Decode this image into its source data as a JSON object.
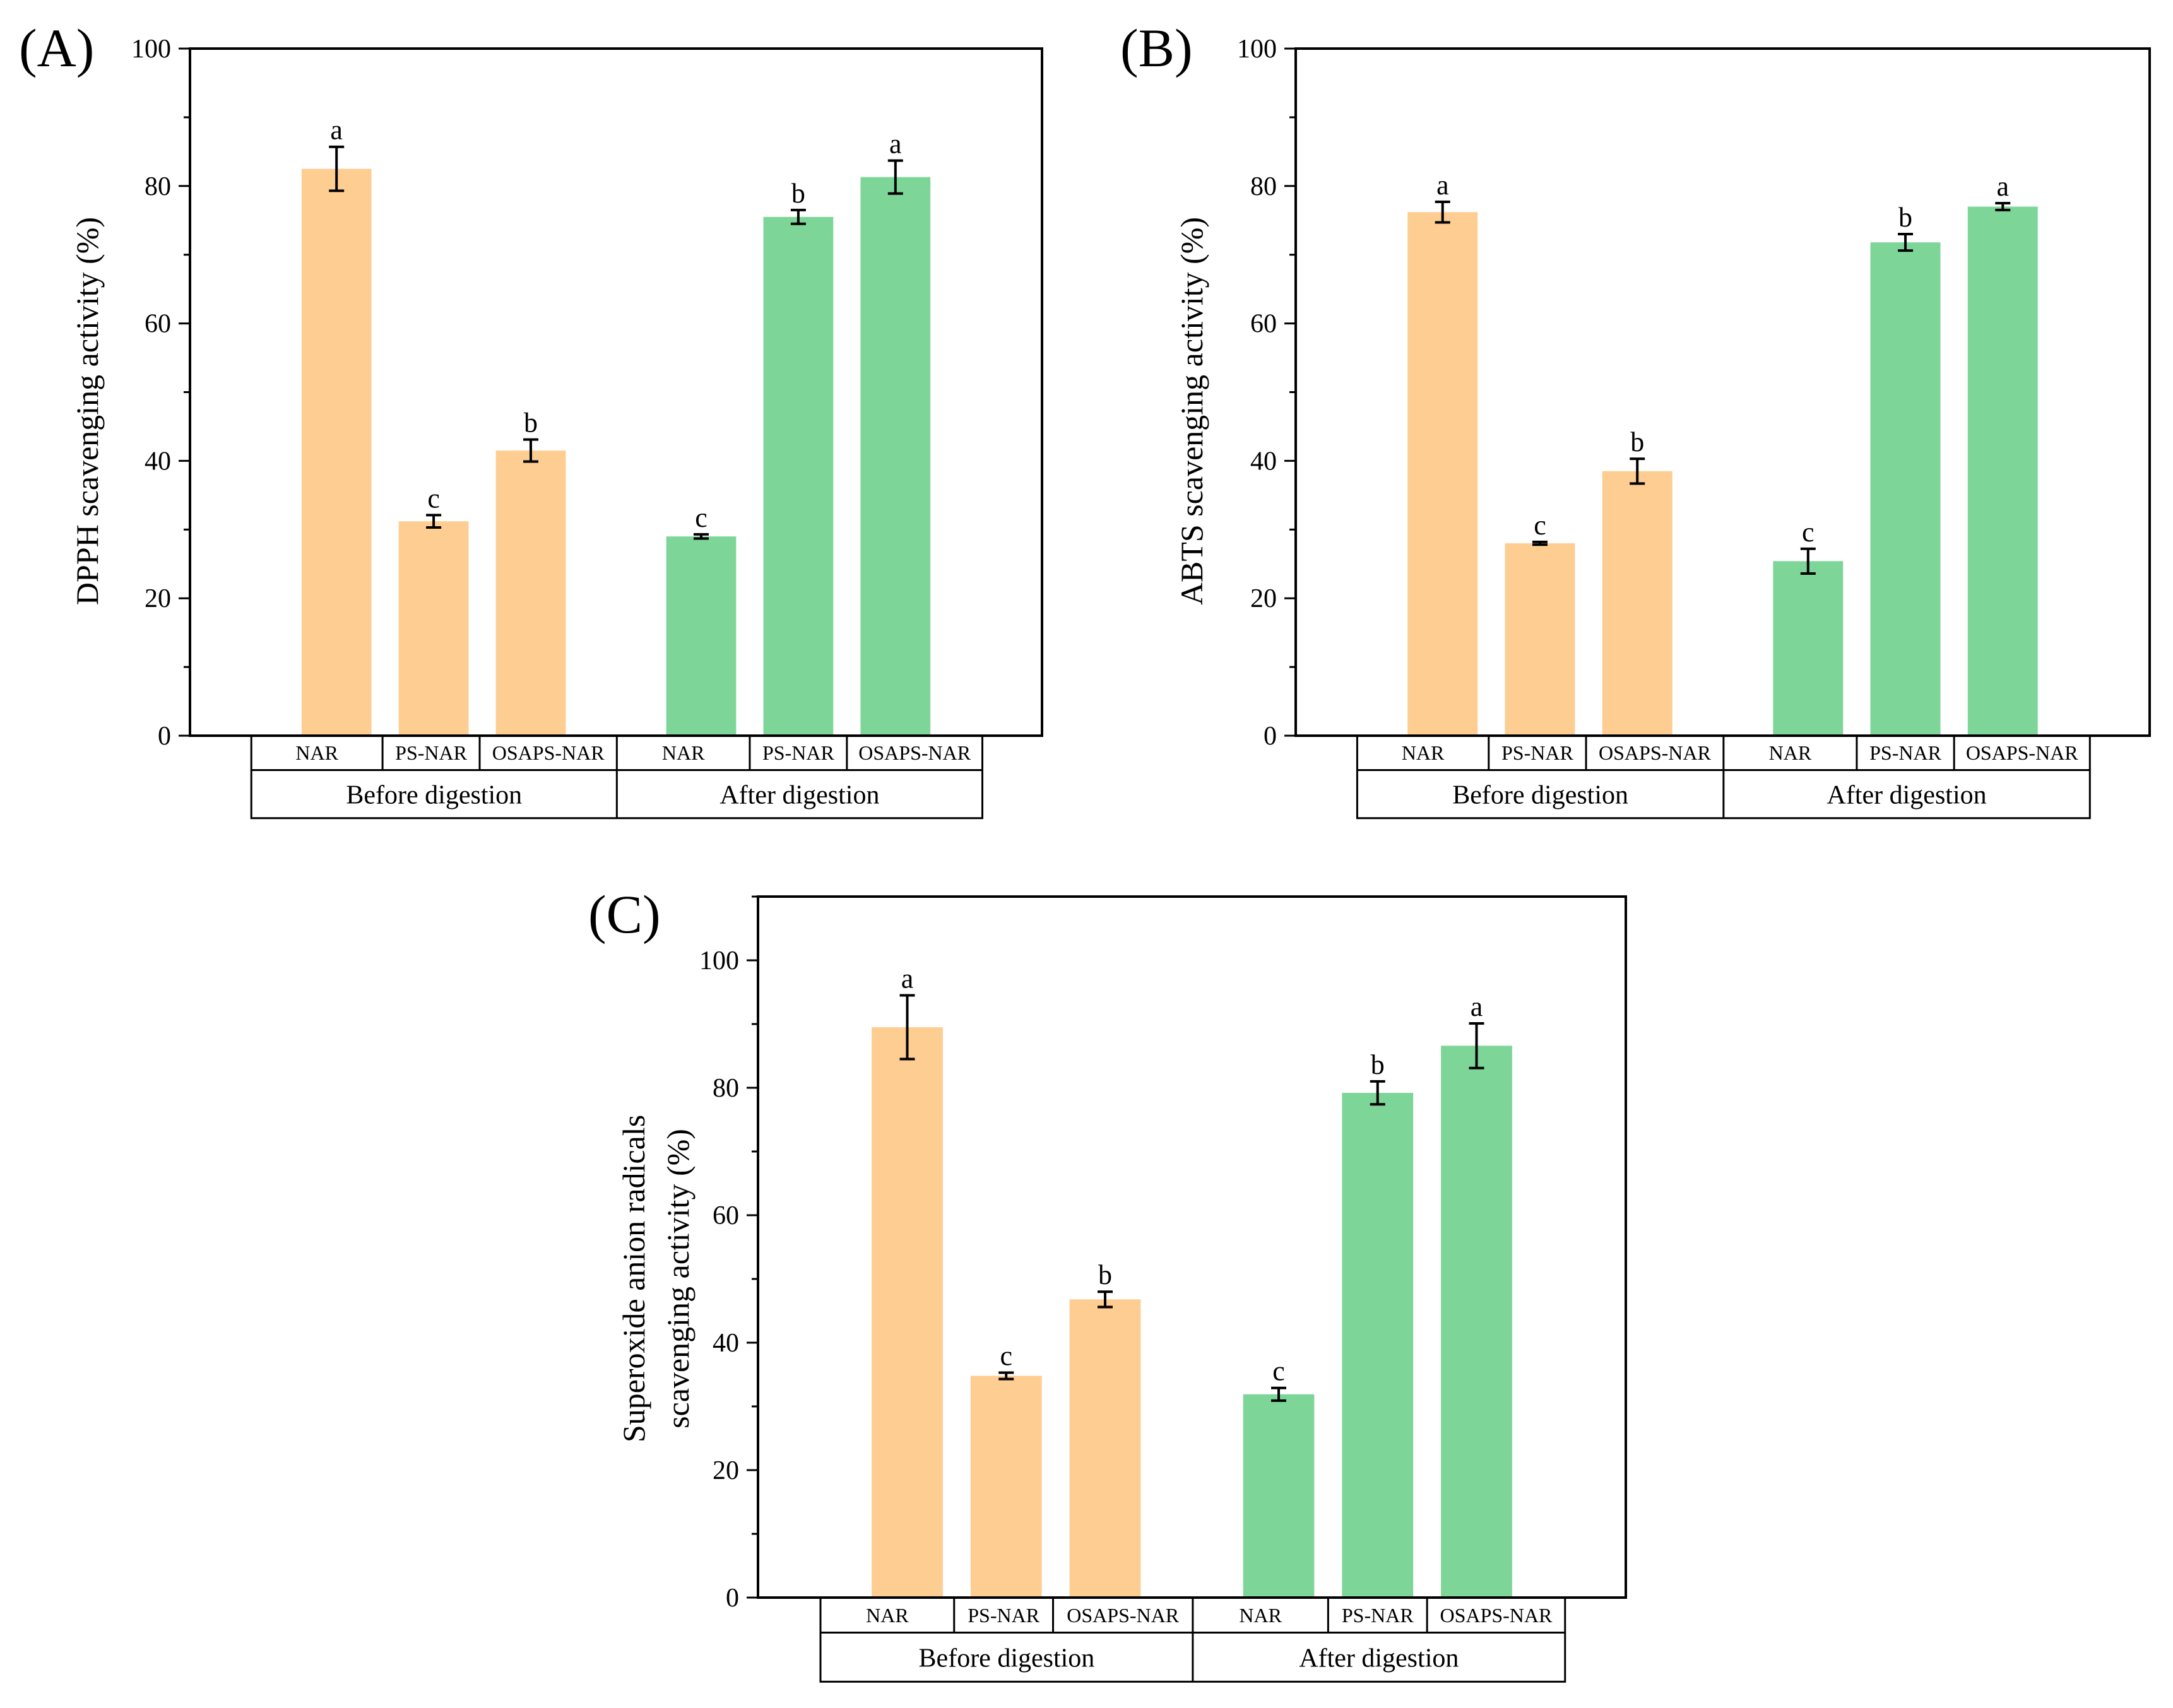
{
  "colors": {
    "before": "#FECD91",
    "after": "#7DD698",
    "axis": "#000000"
  },
  "chart_data": [
    {
      "type": "bar",
      "panel_label": "(A)",
      "ylabel": "DPPH scavenging activity (%)",
      "ylim": [
        0,
        100
      ],
      "yticks": [
        0,
        20,
        40,
        60,
        80,
        100
      ],
      "groups": [
        "Before digestion",
        "After digestion"
      ],
      "categories": [
        "NAR",
        "PS-NAR",
        "OSAPS-NAR",
        "NAR",
        "PS-NAR",
        "OSAPS-NAR"
      ],
      "values": [
        82.5,
        31.2,
        41.5,
        29.0,
        75.5,
        81.3
      ],
      "errors": [
        3.2,
        0.9,
        1.6,
        0.3,
        1.0,
        2.4
      ],
      "letters": [
        "a",
        "c",
        "b",
        "c",
        "b",
        "a"
      ]
    },
    {
      "type": "bar",
      "panel_label": "(B)",
      "ylabel": "ABTS scavenging activity (%)",
      "ylim": [
        0,
        100
      ],
      "yticks": [
        0,
        20,
        40,
        60,
        80,
        100
      ],
      "groups": [
        "Before digestion",
        "After digestion"
      ],
      "categories": [
        "NAR",
        "PS-NAR",
        "OSAPS-NAR",
        "NAR",
        "PS-NAR",
        "OSAPS-NAR"
      ],
      "values": [
        76.2,
        28.0,
        38.5,
        25.4,
        71.8,
        77.0
      ],
      "errors": [
        1.5,
        0.2,
        1.8,
        1.8,
        1.2,
        0.5
      ],
      "letters": [
        "a",
        "c",
        "b",
        "c",
        "b",
        "a"
      ]
    },
    {
      "type": "bar",
      "panel_label": "(C)",
      "ylabel": [
        "Superoxide anion radicals",
        "scavenging activity (%)"
      ],
      "ylim": [
        0,
        110
      ],
      "yticks": [
        0,
        20,
        40,
        60,
        80,
        100
      ],
      "groups": [
        "Before digestion",
        "After digestion"
      ],
      "categories": [
        "NAR",
        "PS-NAR",
        "OSAPS-NAR",
        "NAR",
        "PS-NAR",
        "OSAPS-NAR"
      ],
      "values": [
        89.5,
        34.8,
        46.8,
        31.9,
        79.2,
        86.6
      ],
      "errors": [
        5.0,
        0.5,
        1.2,
        1.0,
        1.8,
        3.5
      ],
      "letters": [
        "a",
        "c",
        "b",
        "c",
        "b",
        "a"
      ]
    }
  ]
}
